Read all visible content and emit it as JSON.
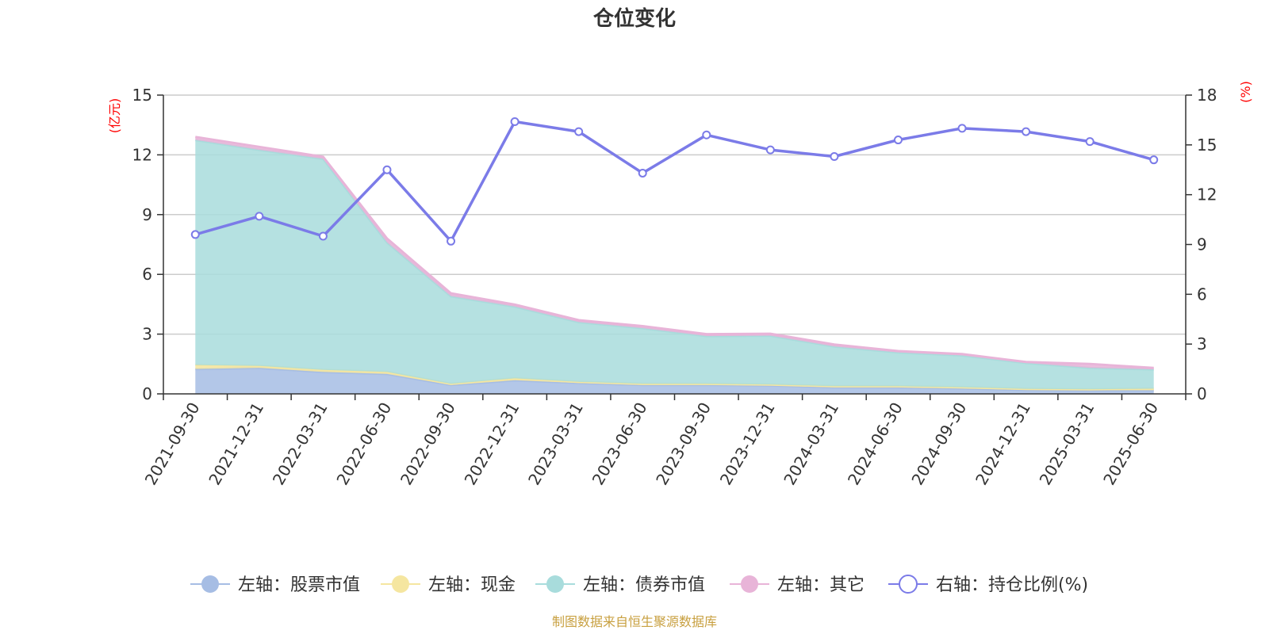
{
  "chart_data": {
    "type": "area",
    "title": "仓位变化",
    "left_axis_unit": "(亿元)",
    "right_axis_unit": "(%)",
    "ylim_left": [
      0,
      15
    ],
    "ylim_right": [
      0,
      18
    ],
    "yticks_left": [
      "0",
      "3",
      "6",
      "9",
      "12",
      "15"
    ],
    "yticks_right": [
      "0",
      "3",
      "6",
      "9",
      "12",
      "15",
      "18"
    ],
    "grid": true,
    "legend_position": "bottom",
    "x": [
      "2021-09-30",
      "2021-12-31",
      "2022-03-31",
      "2022-06-30",
      "2022-09-30",
      "2022-12-31",
      "2023-03-31",
      "2023-06-30",
      "2023-09-30",
      "2023-12-31",
      "2024-03-31",
      "2024-06-30",
      "2024-09-30",
      "2024-12-31",
      "2025-03-31",
      "2025-06-30"
    ],
    "series": [
      {
        "name": "左轴：股票市值",
        "axis": "left",
        "stacked": true,
        "color": "#a6bde4",
        "values": [
          1.25,
          1.3,
          1.1,
          1.0,
          0.45,
          0.68,
          0.55,
          0.45,
          0.45,
          0.42,
          0.33,
          0.33,
          0.28,
          0.2,
          0.18,
          0.18
        ]
      },
      {
        "name": "左轴：现金",
        "axis": "left",
        "stacked": true,
        "color": "#f5e6a0",
        "values": [
          0.2,
          0.1,
          0.1,
          0.1,
          0.05,
          0.1,
          0.05,
          0.05,
          0.05,
          0.05,
          0.05,
          0.05,
          0.05,
          0.05,
          0.05,
          0.08
        ]
      },
      {
        "name": "左轴：债券市值",
        "axis": "left",
        "stacked": true,
        "color": "#a8dcdc",
        "values": [
          11.3,
          10.85,
          10.6,
          6.5,
          4.4,
          3.6,
          3.0,
          2.8,
          2.4,
          2.45,
          2.0,
          1.7,
          1.6,
          1.3,
          1.07,
          0.97
        ]
      },
      {
        "name": "左轴：其它",
        "axis": "left",
        "stacked": true,
        "color": "#e8b4d8",
        "values": [
          0.15,
          0.15,
          0.1,
          0.2,
          0.15,
          0.1,
          0.1,
          0.1,
          0.1,
          0.1,
          0.1,
          0.07,
          0.07,
          0.05,
          0.2,
          0.07
        ]
      },
      {
        "name": "右轴：持仓比例(%)",
        "axis": "right",
        "type": "line",
        "color": "#7b7be8",
        "values": [
          9.6,
          10.7,
          9.5,
          13.5,
          9.2,
          16.4,
          15.8,
          13.3,
          15.6,
          14.7,
          14.3,
          15.3,
          16.0,
          15.8,
          15.2,
          14.1
        ]
      }
    ],
    "source": "制图数据来自恒生聚源数据库"
  }
}
